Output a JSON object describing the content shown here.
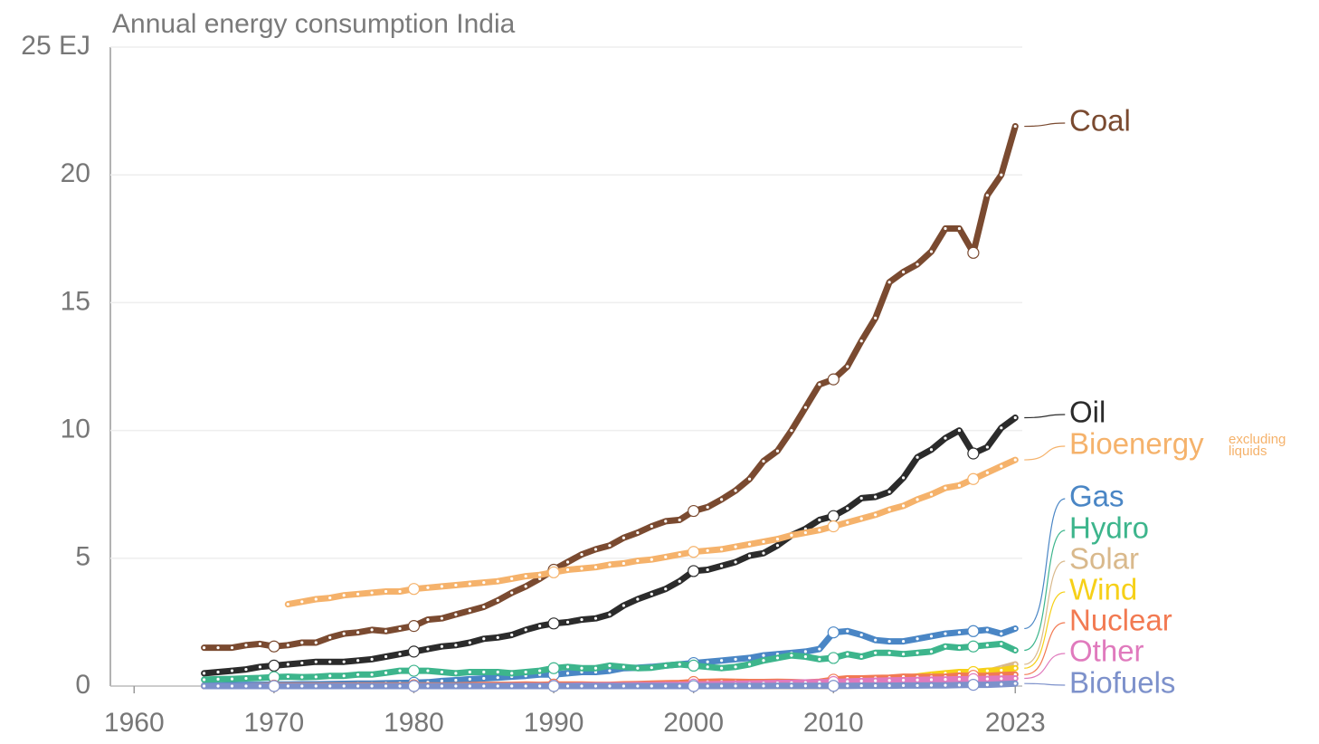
{
  "chart_data": {
    "type": "line",
    "title": "Annual energy consumption India",
    "x": [
      1965,
      1966,
      1967,
      1968,
      1969,
      1970,
      1971,
      1972,
      1973,
      1974,
      1975,
      1976,
      1977,
      1978,
      1979,
      1980,
      1981,
      1982,
      1983,
      1984,
      1985,
      1986,
      1987,
      1988,
      1989,
      1990,
      1991,
      1992,
      1993,
      1994,
      1995,
      1996,
      1997,
      1998,
      1999,
      2000,
      2001,
      2002,
      2003,
      2004,
      2005,
      2006,
      2007,
      2008,
      2009,
      2010,
      2011,
      2012,
      2013,
      2014,
      2015,
      2016,
      2017,
      2018,
      2019,
      2020,
      2021,
      2022,
      2023
    ],
    "xlim": [
      1958.3,
      2023.5
    ],
    "xticks": [
      1960,
      1970,
      1980,
      1990,
      2000,
      2010,
      2023
    ],
    "ylim": [
      0,
      25
    ],
    "yticks": [
      0,
      5,
      10,
      15,
      20,
      {
        "value": 25,
        "label": "25 EJ"
      }
    ],
    "grid": true,
    "annotations": [
      "excluding",
      "liquids"
    ],
    "series": [
      {
        "name": "Coal",
        "color": "#7a4a30",
        "values": [
          1.5,
          1.5,
          1.5,
          1.6,
          1.65,
          1.55,
          1.6,
          1.7,
          1.7,
          1.9,
          2.05,
          2.1,
          2.2,
          2.15,
          2.25,
          2.35,
          2.6,
          2.65,
          2.8,
          2.95,
          3.1,
          3.35,
          3.65,
          3.9,
          4.2,
          4.55,
          4.85,
          5.15,
          5.35,
          5.5,
          5.8,
          6.0,
          6.25,
          6.45,
          6.5,
          6.85,
          7.0,
          7.3,
          7.65,
          8.1,
          8.8,
          9.2,
          10.0,
          10.9,
          11.8,
          12.0,
          12.5,
          13.5,
          14.4,
          15.8,
          16.2,
          16.5,
          17.0,
          17.9,
          17.9,
          16.95,
          19.2,
          20.0,
          21.9
        ]
      },
      {
        "name": "Oil",
        "color": "#2b2b2b",
        "values": [
          0.5,
          0.55,
          0.6,
          0.65,
          0.75,
          0.8,
          0.85,
          0.9,
          0.95,
          0.95,
          0.95,
          1.0,
          1.05,
          1.15,
          1.25,
          1.35,
          1.45,
          1.55,
          1.6,
          1.7,
          1.85,
          1.9,
          2.0,
          2.2,
          2.35,
          2.45,
          2.5,
          2.6,
          2.65,
          2.8,
          3.15,
          3.4,
          3.6,
          3.8,
          4.1,
          4.5,
          4.55,
          4.7,
          4.85,
          5.1,
          5.2,
          5.5,
          5.9,
          6.15,
          6.5,
          6.65,
          6.95,
          7.35,
          7.4,
          7.6,
          8.15,
          8.95,
          9.25,
          9.7,
          10.0,
          9.1,
          9.35,
          10.1,
          10.5
        ]
      },
      {
        "name": "Bioenergy",
        "color": "#f5b26b",
        "values": [
          null,
          null,
          null,
          null,
          null,
          null,
          3.2,
          3.3,
          3.4,
          3.45,
          3.55,
          3.6,
          3.65,
          3.7,
          3.7,
          3.8,
          3.85,
          3.9,
          3.95,
          4.0,
          4.05,
          4.1,
          4.2,
          4.3,
          4.35,
          4.45,
          4.55,
          4.6,
          4.65,
          4.75,
          4.8,
          4.9,
          4.95,
          5.05,
          5.15,
          5.25,
          5.3,
          5.35,
          5.45,
          5.55,
          5.65,
          5.75,
          5.9,
          6.0,
          6.1,
          6.25,
          6.4,
          6.55,
          6.7,
          6.9,
          7.05,
          7.3,
          7.5,
          7.75,
          7.85,
          8.1,
          8.35,
          8.6,
          8.85
        ]
      },
      {
        "name": "Gas",
        "color": "#4a86c5",
        "values": [
          0.03,
          0.03,
          0.04,
          0.05,
          0.05,
          0.06,
          0.06,
          0.07,
          0.07,
          0.08,
          0.09,
          0.1,
          0.1,
          0.11,
          0.12,
          0.13,
          0.15,
          0.2,
          0.23,
          0.27,
          0.3,
          0.33,
          0.37,
          0.4,
          0.45,
          0.45,
          0.5,
          0.55,
          0.55,
          0.6,
          0.7,
          0.72,
          0.75,
          0.8,
          0.85,
          0.9,
          0.95,
          1.0,
          1.05,
          1.1,
          1.2,
          1.25,
          1.3,
          1.35,
          1.45,
          2.1,
          2.15,
          2.0,
          1.8,
          1.75,
          1.75,
          1.85,
          1.95,
          2.05,
          2.1,
          2.15,
          2.2,
          2.05,
          2.25
        ]
      },
      {
        "name": "Hydro",
        "color": "#3db58c",
        "values": [
          0.25,
          0.27,
          0.28,
          0.3,
          0.32,
          0.35,
          0.37,
          0.35,
          0.36,
          0.4,
          0.4,
          0.45,
          0.45,
          0.52,
          0.6,
          0.6,
          0.6,
          0.55,
          0.5,
          0.55,
          0.55,
          0.55,
          0.5,
          0.55,
          0.6,
          0.7,
          0.75,
          0.7,
          0.7,
          0.8,
          0.75,
          0.7,
          0.72,
          0.8,
          0.85,
          0.8,
          0.75,
          0.7,
          0.75,
          0.85,
          1.0,
          1.1,
          1.2,
          1.15,
          1.05,
          1.1,
          1.25,
          1.15,
          1.3,
          1.3,
          1.25,
          1.3,
          1.35,
          1.55,
          1.5,
          1.55,
          1.6,
          1.65,
          1.4
        ]
      },
      {
        "name": "Solar",
        "color": "#d9b98c",
        "values": [
          0,
          0,
          0,
          0,
          0,
          0,
          0,
          0,
          0,
          0,
          0,
          0,
          0,
          0,
          0,
          0,
          0,
          0,
          0,
          0,
          0,
          0,
          0,
          0,
          0,
          0,
          0,
          0,
          0,
          0,
          0,
          0,
          0,
          0,
          0,
          0,
          0,
          0,
          0,
          0,
          0,
          0,
          0,
          0,
          0,
          0.005,
          0.01,
          0.02,
          0.03,
          0.05,
          0.07,
          0.12,
          0.2,
          0.3,
          0.4,
          0.45,
          0.55,
          0.7,
          0.85
        ]
      },
      {
        "name": "Wind",
        "color": "#f6d018",
        "values": [
          0,
          0,
          0,
          0,
          0,
          0,
          0,
          0,
          0,
          0,
          0,
          0,
          0,
          0,
          0,
          0,
          0,
          0,
          0,
          0,
          0,
          0,
          0,
          0,
          0,
          0,
          0,
          0,
          0.005,
          0.01,
          0.01,
          0.01,
          0.015,
          0.015,
          0.02,
          0.02,
          0.02,
          0.03,
          0.04,
          0.05,
          0.06,
          0.08,
          0.1,
          0.12,
          0.15,
          0.18,
          0.22,
          0.25,
          0.28,
          0.3,
          0.32,
          0.38,
          0.45,
          0.5,
          0.55,
          0.55,
          0.6,
          0.62,
          0.7
        ]
      },
      {
        "name": "Nuclear",
        "color": "#f27a52",
        "values": [
          0,
          0,
          0,
          0,
          0.01,
          0.02,
          0.02,
          0.02,
          0.02,
          0.02,
          0.02,
          0.03,
          0.03,
          0.03,
          0.03,
          0.03,
          0.03,
          0.02,
          0.03,
          0.04,
          0.05,
          0.05,
          0.05,
          0.06,
          0.05,
          0.06,
          0.06,
          0.06,
          0.05,
          0.05,
          0.07,
          0.08,
          0.1,
          0.11,
          0.12,
          0.16,
          0.17,
          0.18,
          0.17,
          0.16,
          0.16,
          0.17,
          0.16,
          0.14,
          0.17,
          0.25,
          0.3,
          0.3,
          0.32,
          0.33,
          0.37,
          0.36,
          0.36,
          0.37,
          0.41,
          0.4,
          0.4,
          0.43,
          0.45
        ]
      },
      {
        "name": "Other",
        "color": "#e07abd",
        "values": [
          0,
          0,
          0,
          0,
          0,
          0,
          0,
          0,
          0,
          0,
          0,
          0,
          0,
          0,
          0,
          0,
          0,
          0,
          0,
          0,
          0.005,
          0.005,
          0.01,
          0.01,
          0.01,
          0.01,
          0.01,
          0.02,
          0.02,
          0.03,
          0.03,
          0.04,
          0.04,
          0.05,
          0.05,
          0.06,
          0.07,
          0.08,
          0.09,
          0.1,
          0.11,
          0.12,
          0.13,
          0.14,
          0.15,
          0.16,
          0.18,
          0.2,
          0.21,
          0.22,
          0.23,
          0.24,
          0.25,
          0.26,
          0.27,
          0.27,
          0.28,
          0.29,
          0.3
        ]
      },
      {
        "name": "Biofuels",
        "color": "#7d91cb",
        "values": [
          0,
          0,
          0,
          0,
          0,
          0,
          0,
          0,
          0,
          0,
          0,
          0,
          0,
          0,
          0,
          0,
          0,
          0,
          0,
          0,
          0,
          0,
          0,
          0,
          0,
          0,
          0,
          0,
          0,
          0,
          0,
          0,
          0,
          0,
          0,
          0,
          0,
          0.005,
          0.005,
          0.005,
          0.005,
          0.01,
          0.01,
          0.01,
          0.01,
          0.01,
          0.01,
          0.015,
          0.015,
          0.015,
          0.02,
          0.02,
          0.03,
          0.03,
          0.04,
          0.05,
          0.05,
          0.07,
          0.1
        ]
      }
    ]
  }
}
